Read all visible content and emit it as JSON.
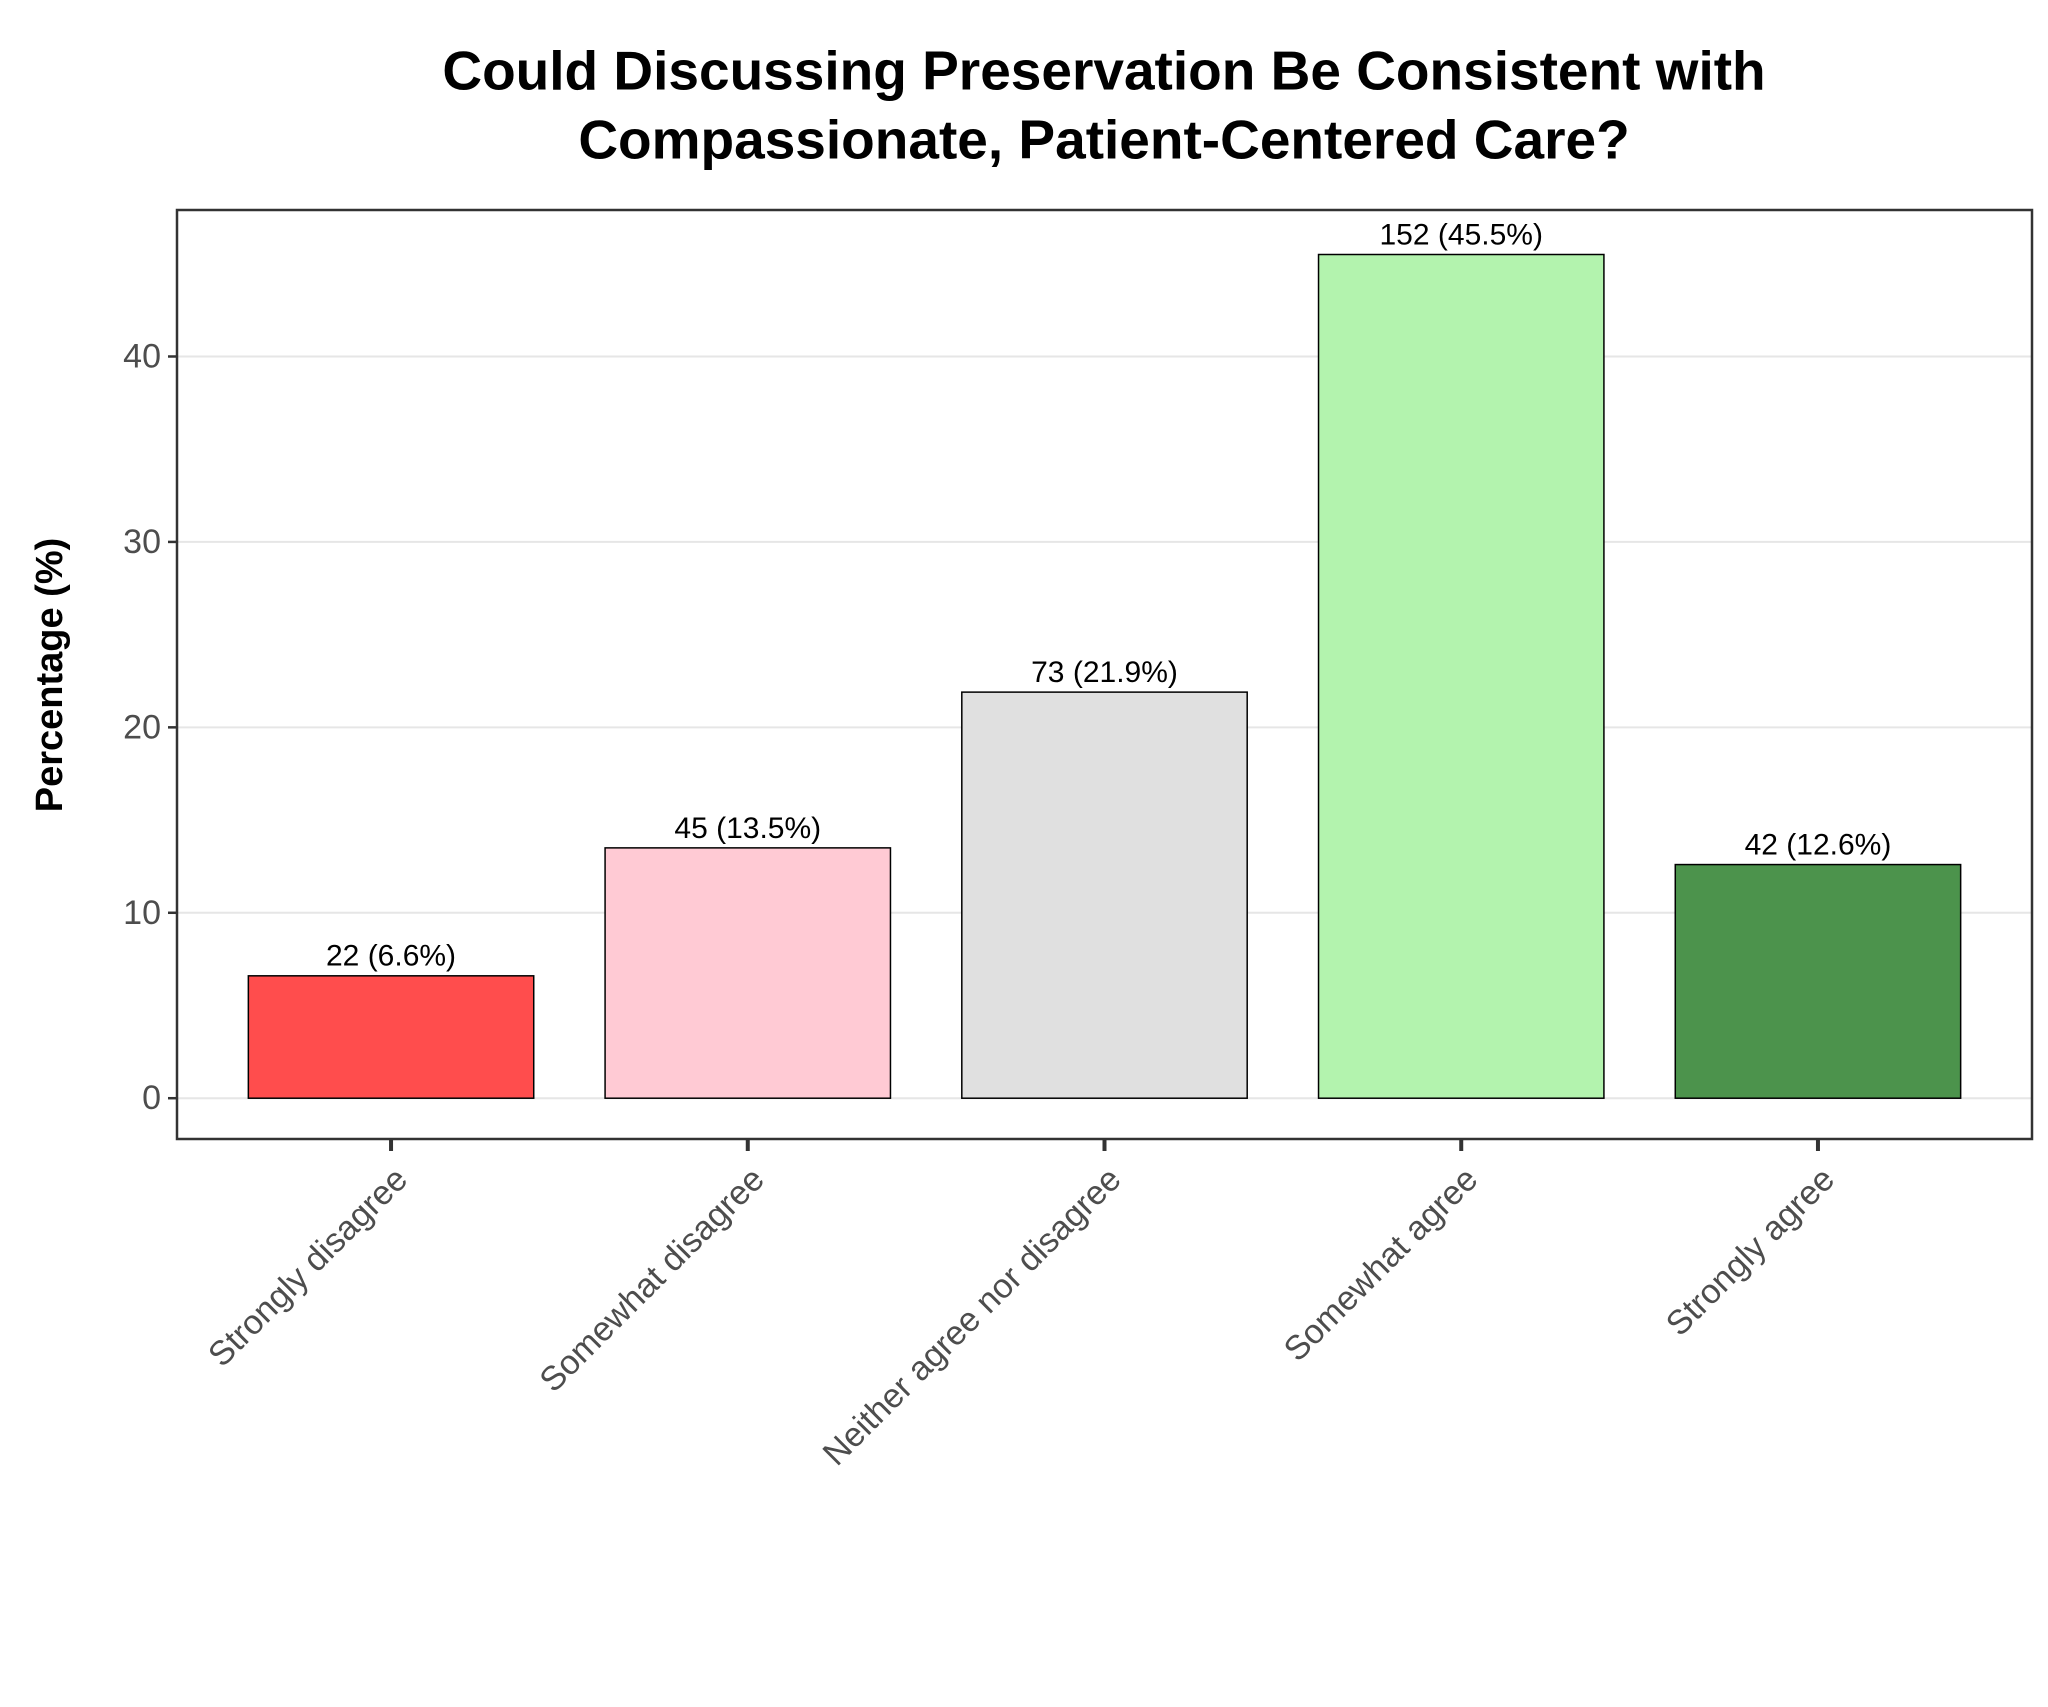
{
  "chart_data": {
    "type": "bar",
    "title": [
      "Could Discussing Preservation Be Consistent with",
      "Compassionate, Patient-Centered Care?"
    ],
    "y_label": "Percentage (%)",
    "categories": [
      "Strongly disagree",
      "Somewhat disagree",
      "Neither agree nor disagree",
      "Somewhat agree",
      "Strongly agree"
    ],
    "values": [
      6.6,
      13.5,
      21.9,
      45.5,
      12.6
    ],
    "value_labels": [
      "22 (6.6%)",
      "45 (13.5%)",
      "73 (21.9%)",
      "152 (45.5%)",
      "42 (12.6%)"
    ],
    "colors": [
      "#ff4d4d",
      "#ffcad4",
      "#e0e0e0",
      "#b3f3ae",
      "#4c934c"
    ],
    "ylim": [
      -2.2,
      47.9
    ],
    "yticks": [
      0,
      10,
      20,
      30,
      40
    ],
    "grid": true
  }
}
